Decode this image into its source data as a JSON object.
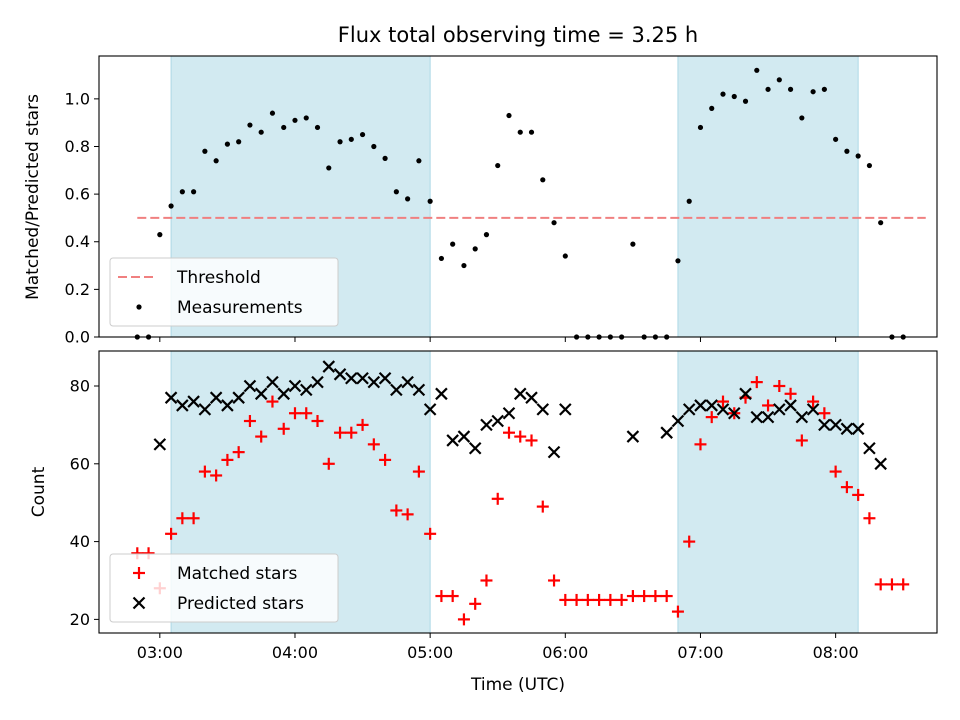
{
  "chart_data": [
    {
      "type": "scatter",
      "title": "Flux total observing time = 3.25 h",
      "ylabel": "Matched/Predicted stars",
      "xlabel": "",
      "ylim": [
        0,
        1.18
      ],
      "yticks": [
        0.0,
        0.2,
        0.4,
        0.6,
        0.8,
        1.0
      ],
      "ytick_labels": [
        "0.0",
        "0.2",
        "0.4",
        "0.6",
        "0.8",
        "1.0"
      ],
      "threshold": {
        "name": "Threshold",
        "y": 0.5,
        "x_start": "02:50",
        "x_end": "08:40",
        "color": "#f08080"
      },
      "shaded_intervals": [
        [
          "03:05",
          "05:00"
        ],
        [
          "06:50",
          "08:10"
        ]
      ],
      "shade_color": "#add8e6",
      "series": [
        {
          "name": "Measurements",
          "color": "#000000",
          "marker": "dot",
          "points": [
            [
              "02:50",
              0.0
            ],
            [
              "02:55",
              0.0
            ],
            [
              "03:00",
              0.43
            ],
            [
              "03:05",
              0.55
            ],
            [
              "03:10",
              0.61
            ],
            [
              "03:15",
              0.61
            ],
            [
              "03:20",
              0.78
            ],
            [
              "03:25",
              0.74
            ],
            [
              "03:30",
              0.81
            ],
            [
              "03:35",
              0.82
            ],
            [
              "03:40",
              0.89
            ],
            [
              "03:45",
              0.86
            ],
            [
              "03:50",
              0.94
            ],
            [
              "03:55",
              0.88
            ],
            [
              "04:00",
              0.91
            ],
            [
              "04:05",
              0.92
            ],
            [
              "04:10",
              0.88
            ],
            [
              "04:15",
              0.71
            ],
            [
              "04:20",
              0.82
            ],
            [
              "04:25",
              0.83
            ],
            [
              "04:30",
              0.85
            ],
            [
              "04:35",
              0.8
            ],
            [
              "04:40",
              0.75
            ],
            [
              "04:45",
              0.61
            ],
            [
              "04:50",
              0.58
            ],
            [
              "04:55",
              0.74
            ],
            [
              "05:00",
              0.57
            ],
            [
              "05:05",
              0.33
            ],
            [
              "05:10",
              0.39
            ],
            [
              "05:15",
              0.3
            ],
            [
              "05:20",
              0.37
            ],
            [
              "05:25",
              0.43
            ],
            [
              "05:30",
              0.72
            ],
            [
              "05:35",
              0.93
            ],
            [
              "05:40",
              0.86
            ],
            [
              "05:45",
              0.86
            ],
            [
              "05:50",
              0.66
            ],
            [
              "05:55",
              0.48
            ],
            [
              "06:00",
              0.34
            ],
            [
              "06:05",
              0.0
            ],
            [
              "06:10",
              0.0
            ],
            [
              "06:15",
              0.0
            ],
            [
              "06:20",
              0.0
            ],
            [
              "06:25",
              0.0
            ],
            [
              "06:30",
              0.39
            ],
            [
              "06:35",
              0.0
            ],
            [
              "06:40",
              0.0
            ],
            [
              "06:45",
              0.0
            ],
            [
              "06:50",
              0.32
            ],
            [
              "06:55",
              0.57
            ],
            [
              "07:00",
              0.88
            ],
            [
              "07:05",
              0.96
            ],
            [
              "07:10",
              1.02
            ],
            [
              "07:15",
              1.01
            ],
            [
              "07:20",
              0.99
            ],
            [
              "07:25",
              1.12
            ],
            [
              "07:30",
              1.04
            ],
            [
              "07:35",
              1.08
            ],
            [
              "07:40",
              1.04
            ],
            [
              "07:45",
              0.92
            ],
            [
              "07:50",
              1.03
            ],
            [
              "07:55",
              1.04
            ],
            [
              "08:00",
              0.83
            ],
            [
              "08:05",
              0.78
            ],
            [
              "08:10",
              0.76
            ],
            [
              "08:15",
              0.72
            ],
            [
              "08:20",
              0.48
            ],
            [
              "08:25",
              0.0
            ],
            [
              "08:30",
              0.0
            ]
          ]
        }
      ],
      "legend": {
        "placement": "lower-left",
        "entries": [
          "Threshold",
          "Measurements"
        ]
      }
    },
    {
      "type": "scatter",
      "xlabel": "Time (UTC)",
      "ylabel": "Count",
      "ylim": [
        16.5,
        89
      ],
      "yticks": [
        20,
        40,
        60,
        80
      ],
      "ytick_labels": [
        "20",
        "40",
        "60",
        "80"
      ],
      "xlim": [
        "02:33",
        "08:45"
      ],
      "xticks": [
        "03:00",
        "04:00",
        "05:00",
        "06:00",
        "07:00",
        "08:00"
      ],
      "xtick_labels": [
        "03:00",
        "04:00",
        "05:00",
        "06:00",
        "07:00",
        "08:00"
      ],
      "shaded_intervals": [
        [
          "03:05",
          "05:00"
        ],
        [
          "06:50",
          "08:10"
        ]
      ],
      "shade_color": "#add8e6",
      "series": [
        {
          "name": "Matched stars",
          "color": "#ff0000",
          "marker": "plus",
          "points": [
            [
              "02:50",
              37
            ],
            [
              "02:55",
              37
            ],
            [
              "03:00",
              28
            ],
            [
              "03:05",
              42
            ],
            [
              "03:10",
              46
            ],
            [
              "03:15",
              46
            ],
            [
              "03:20",
              58
            ],
            [
              "03:25",
              57
            ],
            [
              "03:30",
              61
            ],
            [
              "03:35",
              63
            ],
            [
              "03:40",
              71
            ],
            [
              "03:45",
              67
            ],
            [
              "03:50",
              76
            ],
            [
              "03:55",
              69
            ],
            [
              "04:00",
              73
            ],
            [
              "04:05",
              73
            ],
            [
              "04:10",
              71
            ],
            [
              "04:15",
              60
            ],
            [
              "04:20",
              68
            ],
            [
              "04:25",
              68
            ],
            [
              "04:30",
              70
            ],
            [
              "04:35",
              65
            ],
            [
              "04:40",
              61
            ],
            [
              "04:45",
              48
            ],
            [
              "04:50",
              47
            ],
            [
              "04:55",
              58
            ],
            [
              "05:00",
              42
            ],
            [
              "05:05",
              26
            ],
            [
              "05:10",
              26
            ],
            [
              "05:15",
              20
            ],
            [
              "05:20",
              24
            ],
            [
              "05:25",
              30
            ],
            [
              "05:30",
              51
            ],
            [
              "05:35",
              68
            ],
            [
              "05:40",
              67
            ],
            [
              "05:45",
              66
            ],
            [
              "05:50",
              49
            ],
            [
              "05:55",
              30
            ],
            [
              "06:00",
              25
            ],
            [
              "06:05",
              25
            ],
            [
              "06:10",
              25
            ],
            [
              "06:15",
              25
            ],
            [
              "06:20",
              25
            ],
            [
              "06:25",
              25
            ],
            [
              "06:30",
              26
            ],
            [
              "06:35",
              26
            ],
            [
              "06:40",
              26
            ],
            [
              "06:45",
              26
            ],
            [
              "06:50",
              22
            ],
            [
              "06:55",
              40
            ],
            [
              "07:00",
              65
            ],
            [
              "07:05",
              72
            ],
            [
              "07:10",
              76
            ],
            [
              "07:15",
              73
            ],
            [
              "07:20",
              77
            ],
            [
              "07:25",
              81
            ],
            [
              "07:30",
              75
            ],
            [
              "07:35",
              80
            ],
            [
              "07:40",
              78
            ],
            [
              "07:45",
              66
            ],
            [
              "07:50",
              76
            ],
            [
              "07:55",
              73
            ],
            [
              "08:00",
              58
            ],
            [
              "08:05",
              54
            ],
            [
              "08:10",
              52
            ],
            [
              "08:15",
              46
            ],
            [
              "08:20",
              29
            ],
            [
              "08:25",
              29
            ],
            [
              "08:30",
              29
            ]
          ]
        },
        {
          "name": "Predicted stars",
          "color": "#000000",
          "marker": "x",
          "points": [
            [
              "03:00",
              65
            ],
            [
              "03:05",
              77
            ],
            [
              "03:10",
              75
            ],
            [
              "03:15",
              76
            ],
            [
              "03:20",
              74
            ],
            [
              "03:25",
              77
            ],
            [
              "03:30",
              75
            ],
            [
              "03:35",
              77
            ],
            [
              "03:40",
              80
            ],
            [
              "03:45",
              78
            ],
            [
              "03:50",
              81
            ],
            [
              "03:55",
              78
            ],
            [
              "04:00",
              80
            ],
            [
              "04:05",
              79
            ],
            [
              "04:10",
              81
            ],
            [
              "04:15",
              85
            ],
            [
              "04:20",
              83
            ],
            [
              "04:25",
              82
            ],
            [
              "04:30",
              82
            ],
            [
              "04:35",
              81
            ],
            [
              "04:40",
              82
            ],
            [
              "04:45",
              79
            ],
            [
              "04:50",
              81
            ],
            [
              "04:55",
              79
            ],
            [
              "05:00",
              74
            ],
            [
              "05:05",
              78
            ],
            [
              "05:10",
              66
            ],
            [
              "05:15",
              67
            ],
            [
              "05:20",
              64
            ],
            [
              "05:25",
              70
            ],
            [
              "05:30",
              71
            ],
            [
              "05:35",
              73
            ],
            [
              "05:40",
              78
            ],
            [
              "05:45",
              77
            ],
            [
              "05:50",
              74
            ],
            [
              "05:55",
              63
            ],
            [
              "06:00",
              74
            ],
            [
              "06:30",
              67
            ],
            [
              "06:45",
              68
            ],
            [
              "06:50",
              71
            ],
            [
              "06:55",
              74
            ],
            [
              "07:00",
              75
            ],
            [
              "07:05",
              75
            ],
            [
              "07:10",
              74
            ],
            [
              "07:15",
              73
            ],
            [
              "07:20",
              78
            ],
            [
              "07:25",
              72
            ],
            [
              "07:30",
              72
            ],
            [
              "07:35",
              74
            ],
            [
              "07:40",
              75
            ],
            [
              "07:45",
              72
            ],
            [
              "07:50",
              74
            ],
            [
              "07:55",
              70
            ],
            [
              "08:00",
              70
            ],
            [
              "08:05",
              69
            ],
            [
              "08:10",
              69
            ],
            [
              "08:15",
              64
            ],
            [
              "08:20",
              60
            ]
          ]
        }
      ],
      "legend": {
        "placement": "lower-left",
        "entries": [
          "Matched stars",
          "Predicted stars"
        ]
      }
    }
  ]
}
